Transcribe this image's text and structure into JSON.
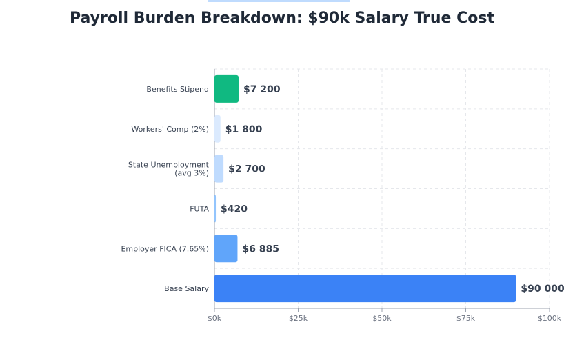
{
  "chart_data": {
    "type": "bar",
    "orientation": "horizontal",
    "title": "Payroll Burden Breakdown: $90k Salary True Cost",
    "categories": [
      "Base Salary",
      "Employer FICA (7.65%)",
      "FUTA",
      "State Unemployment (avg 3%)",
      "Workers' Comp (2%)",
      "Benefits Stipend"
    ],
    "category_lines": [
      [
        "Base Salary"
      ],
      [
        "Employer FICA (7.65%)"
      ],
      [
        "FUTA"
      ],
      [
        "State Unemployment",
        "(avg 3%)"
      ],
      [
        "Workers' Comp (2%)"
      ],
      [
        "Benefits Stipend"
      ]
    ],
    "values": [
      90000,
      6885,
      420,
      2700,
      1800,
      7200
    ],
    "value_labels": [
      "$90 000",
      "$6 885",
      "$420",
      "$2 700",
      "$1 800",
      "$7 200"
    ],
    "colors": [
      "#3b82f6",
      "#60a5fa",
      "#93c5fd",
      "#bfdbfe",
      "#dbeafe",
      "#10b981"
    ],
    "xlim": [
      0,
      100000
    ],
    "x_ticks": [
      0,
      25000,
      50000,
      75000,
      100000
    ],
    "x_tick_labels": [
      "$0k",
      "$25k",
      "$50k",
      "$75k",
      "$100k"
    ],
    "grid": true,
    "xlabel": "",
    "ylabel": ""
  }
}
